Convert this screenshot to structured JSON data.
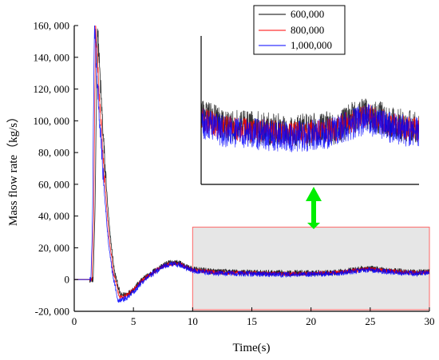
{
  "colors": {
    "s600k": "#000000",
    "s800k": "#ff0000",
    "s1m": "#0000ff",
    "highlight_fill": "#e6e6e6",
    "highlight_stroke": "#ff6666",
    "arrow": "#00ee00"
  },
  "chart_data": {
    "type": "line",
    "title": "",
    "xlabel": "Time(s)",
    "ylabel": "Mass flow rate（kg/s）",
    "xlim": [
      0,
      30
    ],
    "ylim": [
      -20000,
      160000
    ],
    "x_ticks": [
      0,
      5,
      10,
      15,
      20,
      25,
      30
    ],
    "x_tick_labels": [
      "0",
      "5",
      "10",
      "15",
      "20",
      "25",
      "30"
    ],
    "y_ticks": [
      -20000,
      0,
      20000,
      40000,
      60000,
      80000,
      100000,
      120000,
      140000,
      160000
    ],
    "y_tick_labels": [
      "-20, 000",
      "0",
      "20, 000",
      "40, 000",
      "60, 000",
      "80, 000",
      "100, 000",
      "120, 000",
      "140, 000",
      "160, 000"
    ],
    "legend_position": "top-right",
    "grid": false,
    "series": [
      {
        "name": "600,000",
        "color": "#000000",
        "noise": 1800,
        "points": [
          [
            0,
            0
          ],
          [
            1.6,
            0
          ],
          [
            1.75,
            40000
          ],
          [
            1.95,
            160000
          ],
          [
            2.2,
            125000
          ],
          [
            2.6,
            70000
          ],
          [
            3.0,
            30000
          ],
          [
            3.4,
            5000
          ],
          [
            3.9,
            -10000
          ],
          [
            4.5,
            -9000
          ],
          [
            5.0,
            -6000
          ],
          [
            5.5,
            -2000
          ],
          [
            6.0,
            1500
          ],
          [
            6.5,
            4000
          ],
          [
            7.0,
            6500
          ],
          [
            7.5,
            9000
          ],
          [
            8.0,
            10500
          ],
          [
            8.5,
            11000
          ],
          [
            9.0,
            10000
          ],
          [
            9.5,
            8000
          ],
          [
            10.0,
            6500
          ],
          [
            12.0,
            5000
          ],
          [
            15.0,
            4500
          ],
          [
            18.0,
            4000
          ],
          [
            20.0,
            4200
          ],
          [
            22.0,
            4500
          ],
          [
            24.0,
            6500
          ],
          [
            25.0,
            7000
          ],
          [
            27.0,
            5500
          ],
          [
            29.0,
            4500
          ],
          [
            30.0,
            5000
          ]
        ]
      },
      {
        "name": "800,000",
        "color": "#ff0000",
        "noise": 1300,
        "points": [
          [
            0,
            0
          ],
          [
            1.5,
            0
          ],
          [
            1.65,
            40000
          ],
          [
            1.8,
            160000
          ],
          [
            2.05,
            125000
          ],
          [
            2.5,
            70000
          ],
          [
            2.9,
            30000
          ],
          [
            3.3,
            5000
          ],
          [
            3.8,
            -11000
          ],
          [
            4.4,
            -10000
          ],
          [
            5.0,
            -6500
          ],
          [
            5.5,
            -2500
          ],
          [
            6.0,
            1000
          ],
          [
            6.5,
            3500
          ],
          [
            7.0,
            6000
          ],
          [
            7.5,
            8500
          ],
          [
            8.0,
            9800
          ],
          [
            8.5,
            10200
          ],
          [
            9.0,
            9500
          ],
          [
            9.5,
            7500
          ],
          [
            10.0,
            6000
          ],
          [
            12.0,
            4500
          ],
          [
            15.0,
            4000
          ],
          [
            18.0,
            3500
          ],
          [
            20.0,
            3800
          ],
          [
            22.0,
            4200
          ],
          [
            24.0,
            6000
          ],
          [
            25.0,
            6500
          ],
          [
            27.0,
            5000
          ],
          [
            29.0,
            4200
          ],
          [
            30.0,
            4800
          ]
        ]
      },
      {
        "name": "1,000,000",
        "color": "#0000ff",
        "noise": 1700,
        "points": [
          [
            0,
            0
          ],
          [
            1.4,
            0
          ],
          [
            1.55,
            40000
          ],
          [
            1.7,
            160000
          ],
          [
            1.95,
            125000
          ],
          [
            2.4,
            70000
          ],
          [
            2.8,
            30000
          ],
          [
            3.2,
            5000
          ],
          [
            3.7,
            -13000
          ],
          [
            4.3,
            -12000
          ],
          [
            5.0,
            -8000
          ],
          [
            5.5,
            -3500
          ],
          [
            6.0,
            0
          ],
          [
            6.5,
            3000
          ],
          [
            7.0,
            5500
          ],
          [
            7.5,
            8000
          ],
          [
            8.0,
            9500
          ],
          [
            8.5,
            10000
          ],
          [
            9.0,
            9000
          ],
          [
            9.5,
            7000
          ],
          [
            10.0,
            5500
          ],
          [
            12.0,
            4000
          ],
          [
            15.0,
            3500
          ],
          [
            18.0,
            3000
          ],
          [
            20.0,
            3300
          ],
          [
            22.0,
            3800
          ],
          [
            24.0,
            5500
          ],
          [
            25.0,
            6000
          ],
          [
            27.0,
            4500
          ],
          [
            29.0,
            3800
          ],
          [
            30.0,
            4300
          ]
        ]
      }
    ],
    "highlight_region": {
      "x": [
        10,
        30
      ],
      "y": [
        -19000,
        33000
      ]
    },
    "inset": {
      "x": [
        10,
        29.5
      ],
      "y": [
        -5000,
        20000
      ],
      "description_shown": false
    }
  }
}
